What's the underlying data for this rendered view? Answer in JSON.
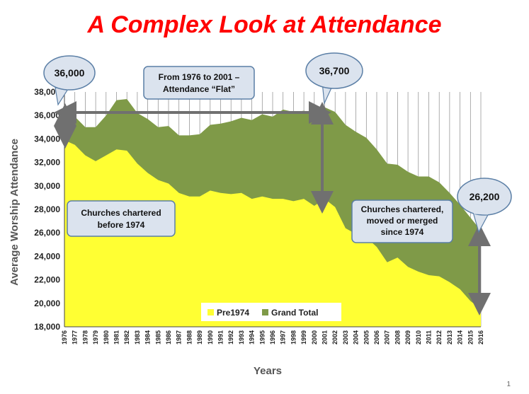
{
  "slide": {
    "title": "A Complex Look at Attendance",
    "page_number": "1"
  },
  "callouts": {
    "start_value": "36,000",
    "peak_value": "36,700",
    "end_value": "26,200",
    "flat_note_line1": "From 1976 to 2001 –",
    "flat_note_line2": "Attendance “Flat”",
    "pre_note_line1": "Churches chartered",
    "pre_note_line2": "before 1974",
    "post_note_line1": "Churches chartered,",
    "post_note_line2": "moved or merged",
    "post_note_line3": "since 1974"
  },
  "colors": {
    "pre1974": "#ffff33",
    "grand_total": "#7f9a48",
    "arrow": "#707070",
    "callout_fill": "#dbe3ee",
    "callout_stroke": "#5b7fa6"
  },
  "chart_data": {
    "type": "area",
    "title": "A Complex Look at Attendance",
    "xlabel": "Years",
    "ylabel": "Average Worship Attendance",
    "ylim": [
      18000,
      38000
    ],
    "yticks": [
      18000,
      20000,
      22000,
      24000,
      26000,
      28000,
      30000,
      32000,
      34000,
      36000,
      38000
    ],
    "ytick_labels": [
      "18,000",
      "20,000",
      "22,000",
      "24,000",
      "26,000",
      "28,000",
      "30,000",
      "32,000",
      "34,000",
      "36,000",
      "38,000"
    ],
    "grid": "vertical lines at each year",
    "legend_position": "bottom-center",
    "x": [
      "1976",
      "1977",
      "1978",
      "1979",
      "1980",
      "1981",
      "1982",
      "1983",
      "1984",
      "1985",
      "1986",
      "1987",
      "1988",
      "1989",
      "1990",
      "1991",
      "1992",
      "1993",
      "1994",
      "1995",
      "1996",
      "1997",
      "1998",
      "1999",
      "2000",
      "2001",
      "2002",
      "2003",
      "2004",
      "2005",
      "2006",
      "2007",
      "2008",
      "2009",
      "2010",
      "2011",
      "2012",
      "2013",
      "2014",
      "2015",
      "2016"
    ],
    "series": [
      {
        "name": "Pre1974",
        "values": [
          33900,
          33500,
          32600,
          32100,
          32600,
          33100,
          33000,
          31900,
          31100,
          30500,
          30200,
          29400,
          29100,
          29100,
          29600,
          29400,
          29300,
          29400,
          28900,
          29100,
          28900,
          28900,
          28700,
          28900,
          28300,
          28900,
          28200,
          26400,
          25900,
          25600,
          24800,
          23500,
          23900,
          23100,
          22700,
          22400,
          22300,
          21800,
          21200,
          20200,
          19500
        ]
      },
      {
        "name": "Grand Total",
        "values": [
          36000,
          35900,
          35000,
          35000,
          36000,
          37300,
          37400,
          36200,
          35700,
          35000,
          35100,
          34300,
          34300,
          34400,
          35200,
          35300,
          35500,
          35800,
          35600,
          36100,
          35900,
          36500,
          36300,
          36400,
          36200,
          36700,
          36300,
          35200,
          34600,
          34100,
          33100,
          31900,
          31800,
          31200,
          30800,
          30800,
          30300,
          29400,
          28400,
          27300,
          26200
        ]
      }
    ]
  }
}
